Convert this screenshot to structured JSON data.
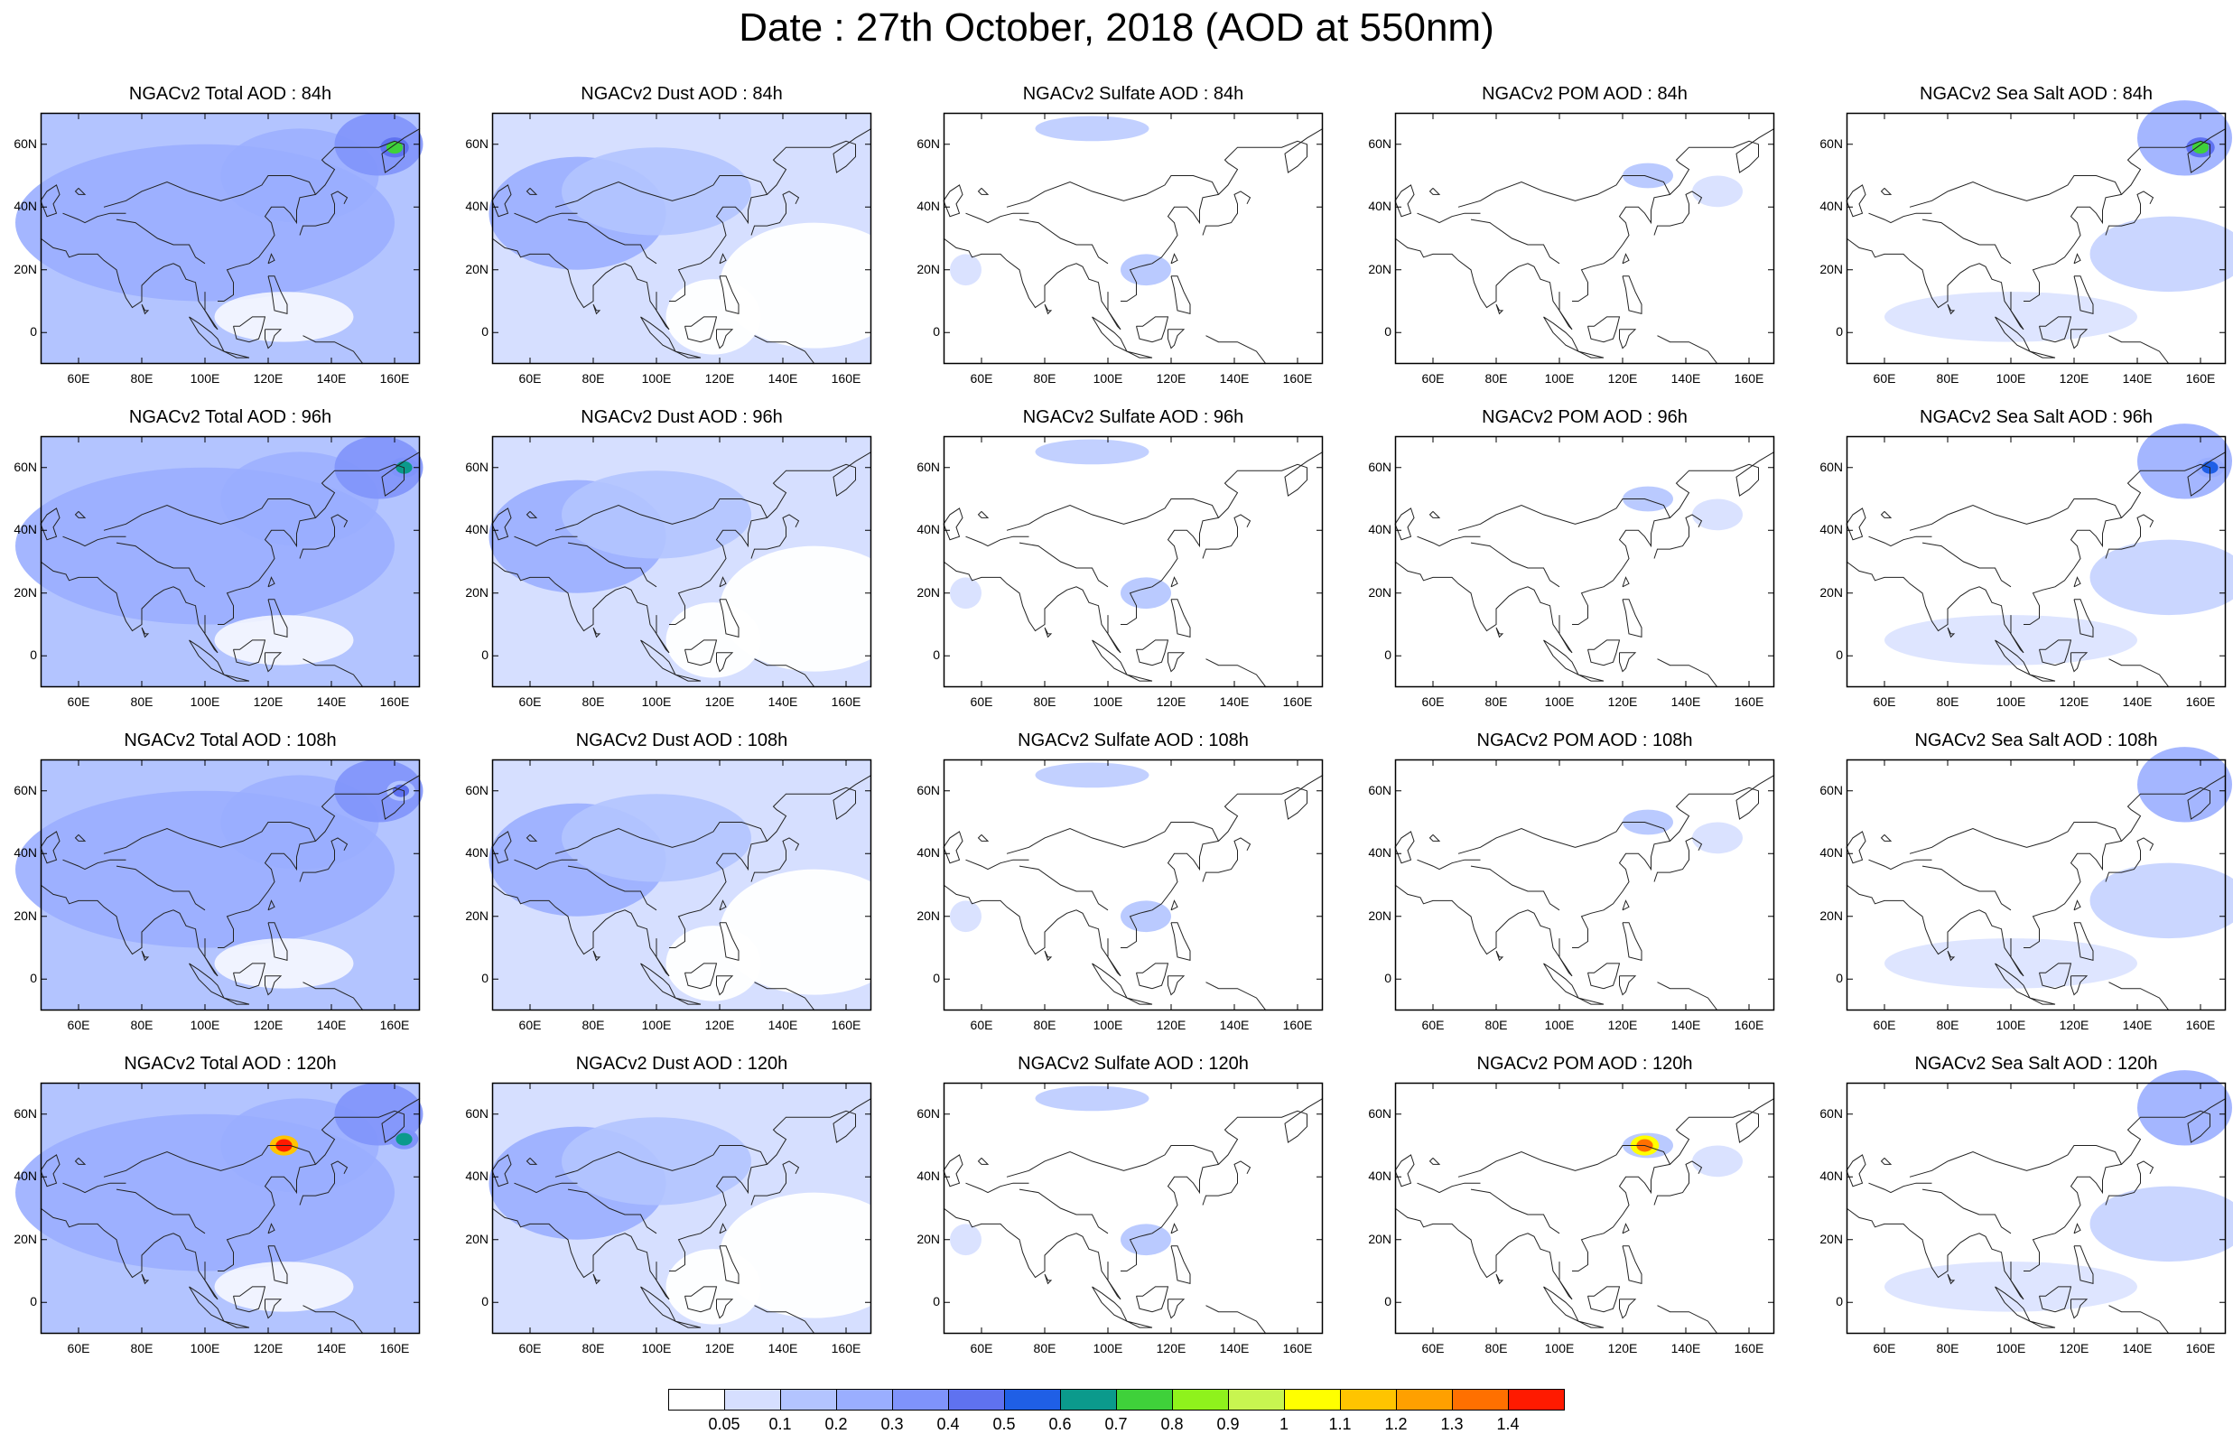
{
  "title": "Date : 27th October, 2018 (AOD at 550nm)",
  "chart_data": {
    "type": "heatmap",
    "rows": [
      "84h",
      "96h",
      "108h",
      "120h"
    ],
    "columns": [
      "Total",
      "Dust",
      "Sulfate",
      "POM",
      "Sea Salt"
    ],
    "panel_titles": [
      [
        "NGACv2 Total AOD : 84h",
        "NGACv2 Dust AOD : 84h",
        "NGACv2 Sulfate AOD : 84h",
        "NGACv2 POM AOD : 84h",
        "NGACv2 Sea Salt AOD : 84h"
      ],
      [
        "NGACv2 Total AOD : 96h",
        "NGACv2 Dust AOD : 96h",
        "NGACv2 Sulfate AOD : 96h",
        "NGACv2 POM AOD : 96h",
        "NGACv2 Sea Salt AOD : 96h"
      ],
      [
        "NGACv2 Total AOD : 108h",
        "NGACv2 Dust AOD : 108h",
        "NGACv2 Sulfate AOD : 108h",
        "NGACv2 POM AOD : 108h",
        "NGACv2 Sea Salt AOD : 108h"
      ],
      [
        "NGACv2 Total AOD : 120h",
        "NGACv2 Dust AOD : 120h",
        "NGACv2 Sulfate AOD : 120h",
        "NGACv2 POM AOD : 120h",
        "NGACv2 Sea Salt  AOD : 120h"
      ]
    ],
    "x_ticks": [
      "60E",
      "80E",
      "100E",
      "120E",
      "140E",
      "160E"
    ],
    "x_tick_values": [
      60,
      80,
      100,
      120,
      140,
      160
    ],
    "xlim": [
      48,
      168
    ],
    "y_ticks": [
      "60N",
      "40N",
      "20N",
      "0"
    ],
    "y_tick_values": [
      60,
      40,
      20,
      0
    ],
    "ylim": [
      -10,
      70
    ],
    "colorbar": {
      "levels": [
        "0.05",
        "0.1",
        "0.2",
        "0.3",
        "0.4",
        "0.5",
        "0.6",
        "0.7",
        "0.8",
        "0.9",
        "1",
        "1.1",
        "1.2",
        "1.3",
        "1.4"
      ],
      "colors": [
        "#ffffff",
        "#d6dfff",
        "#b3c4ff",
        "#9aaeff",
        "#7f93fb",
        "#5f72f0",
        "#1f5fe6",
        "#0b9a8c",
        "#3fd13a",
        "#8ff21c",
        "#c8f550",
        "#ffff00",
        "#ffc400",
        "#ffa000",
        "#ff7000",
        "#ff1a00"
      ]
    },
    "dominant_level_index": [
      [
        3,
        2,
        0,
        0,
        2
      ],
      [
        3,
        2,
        0,
        0,
        2
      ],
      [
        3,
        2,
        0,
        0,
        2
      ],
      [
        3,
        2,
        0,
        0,
        1
      ]
    ],
    "hotspots": [
      {
        "row": 0,
        "col": 0,
        "lon": 160,
        "lat": 59,
        "level_index": 8
      },
      {
        "row": 0,
        "col": 4,
        "lon": 160,
        "lat": 59,
        "level_index": 8
      },
      {
        "row": 1,
        "col": 0,
        "lon": 163,
        "lat": 60,
        "level_index": 7
      },
      {
        "row": 1,
        "col": 4,
        "lon": 163,
        "lat": 60,
        "level_index": 6
      },
      {
        "row": 2,
        "col": 0,
        "lon": 162,
        "lat": 60,
        "level_index": 5
      },
      {
        "row": 3,
        "col": 0,
        "lon": 125,
        "lat": 50,
        "level_index": 15
      },
      {
        "row": 3,
        "col": 0,
        "lon": 163,
        "lat": 52,
        "level_index": 7
      },
      {
        "row": 3,
        "col": 3,
        "lon": 127,
        "lat": 50,
        "level_index": 14
      }
    ]
  }
}
